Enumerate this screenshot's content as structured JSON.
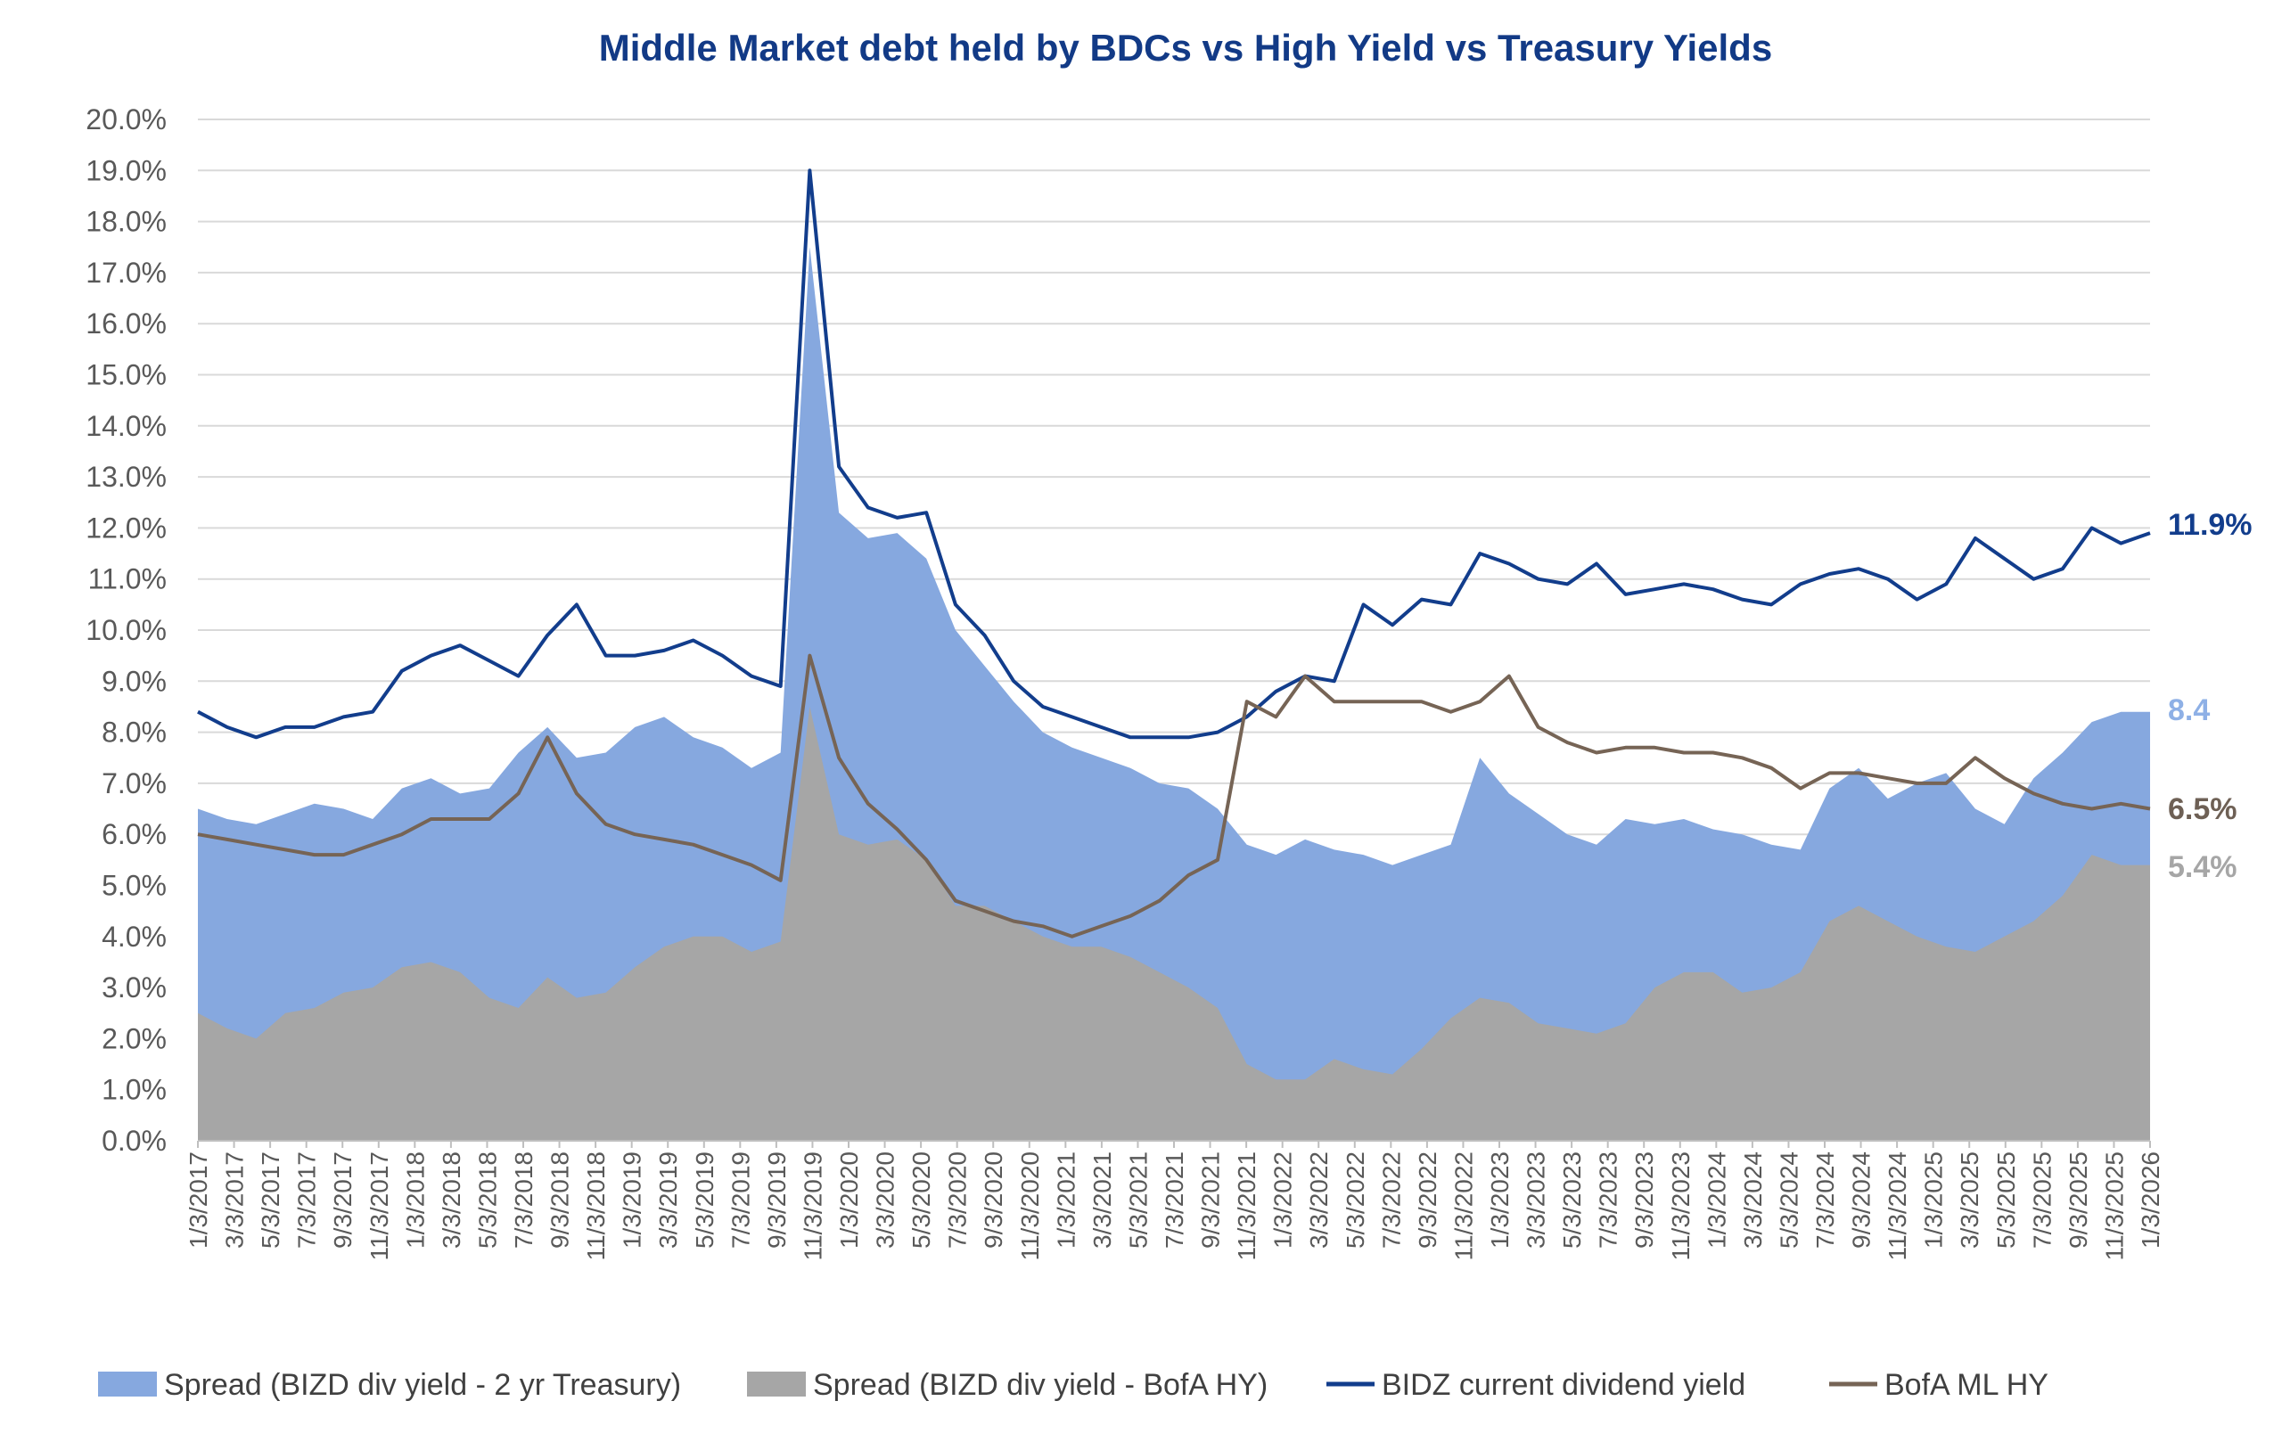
{
  "chart_data": {
    "type": "area",
    "title": "Middle Market debt held by BDCs vs High Yield vs Treasury Yields",
    "xlabel": "",
    "ylabel": "",
    "x_ticks": [
      "1/3/2017",
      "3/3/2017",
      "5/3/2017",
      "7/3/2017",
      "9/3/2017",
      "11/3/2017",
      "1/3/2018",
      "3/3/2018",
      "5/3/2018",
      "7/3/2018",
      "9/3/2018",
      "11/3/2018",
      "1/3/2019",
      "3/3/2019",
      "5/3/2019",
      "7/3/2019",
      "9/3/2019",
      "11/3/2019",
      "1/3/2020",
      "3/3/2020",
      "5/3/2020",
      "7/3/2020",
      "9/3/2020",
      "11/3/2020",
      "1/3/2021",
      "3/3/2021",
      "5/3/2021",
      "7/3/2021",
      "9/3/2021",
      "11/3/2021",
      "1/3/2022",
      "3/3/2022",
      "5/3/2022",
      "7/3/2022",
      "9/3/2022",
      "11/3/2022",
      "1/3/2023",
      "3/3/2023",
      "5/3/2023",
      "7/3/2023",
      "9/3/2023",
      "11/3/2023",
      "1/3/2024",
      "3/3/2024",
      "5/3/2024",
      "7/3/2024",
      "9/3/2024",
      "11/3/2024",
      "1/3/2025",
      "3/3/2025",
      "5/3/2025",
      "7/3/2025",
      "9/3/2025",
      "11/3/2025",
      "1/3/2026"
    ],
    "y_ticks": [
      "0.0%",
      "1.0%",
      "2.0%",
      "3.0%",
      "4.0%",
      "5.0%",
      "6.0%",
      "7.0%",
      "8.0%",
      "9.0%",
      "10.0%",
      "11.0%",
      "12.0%",
      "13.0%",
      "14.0%",
      "15.0%",
      "16.0%",
      "17.0%",
      "18.0%",
      "19.0%",
      "20.0%"
    ],
    "ylim": [
      0,
      20
    ],
    "grid": true,
    "legend_position": "bottom",
    "series": [
      {
        "name": "Spread (BIZD div yield - 2 yr Treasury)",
        "kind": "area",
        "color": "#86a8df",
        "end_label": "8.4",
        "values": [
          6.5,
          6.3,
          6.2,
          6.4,
          6.6,
          6.5,
          6.3,
          6.9,
          7.1,
          6.8,
          6.9,
          7.6,
          8.1,
          7.5,
          7.6,
          8.1,
          8.3,
          7.9,
          7.7,
          7.3,
          7.6,
          17.5,
          12.3,
          11.8,
          11.9,
          11.4,
          10.0,
          9.3,
          8.6,
          8.0,
          7.7,
          7.5,
          7.3,
          7.0,
          6.9,
          6.5,
          5.8,
          5.6,
          5.9,
          5.7,
          5.6,
          5.4,
          5.6,
          5.8,
          7.5,
          6.8,
          6.4,
          6.0,
          5.8,
          6.3,
          6.2,
          6.3,
          6.1,
          6.0,
          5.8,
          5.7,
          6.9,
          7.3,
          6.7,
          7.0,
          7.2,
          6.5,
          6.2,
          7.1,
          7.6,
          8.2,
          8.4,
          8.4
        ]
      },
      {
        "name": "Spread (BIZD div yield - BofA HY)",
        "kind": "area",
        "color": "#a6a6a6",
        "end_label": "5.4%",
        "values": [
          2.5,
          2.2,
          2.0,
          2.5,
          2.6,
          2.9,
          3.0,
          3.4,
          3.5,
          3.3,
          2.8,
          2.6,
          3.2,
          2.8,
          2.9,
          3.4,
          3.8,
          4.0,
          4.0,
          3.7,
          3.9,
          8.5,
          6.0,
          5.8,
          5.9,
          5.5,
          4.6,
          4.6,
          4.3,
          4.0,
          3.8,
          3.8,
          3.6,
          3.3,
          3.0,
          2.6,
          1.5,
          1.2,
          1.2,
          1.6,
          1.4,
          1.3,
          1.8,
          2.4,
          2.8,
          2.7,
          2.3,
          2.2,
          2.1,
          2.3,
          3.0,
          3.3,
          3.3,
          2.9,
          3.0,
          3.3,
          4.3,
          4.6,
          4.3,
          4.0,
          3.8,
          3.7,
          4.0,
          4.3,
          4.8,
          5.6,
          5.4,
          5.4
        ]
      },
      {
        "name": "BIDZ current dividend yield",
        "kind": "line",
        "color": "#123d8c",
        "end_label": "11.9%",
        "values": [
          8.4,
          8.1,
          7.9,
          8.1,
          8.1,
          8.3,
          8.4,
          9.2,
          9.5,
          9.7,
          9.4,
          9.1,
          9.9,
          10.5,
          9.5,
          9.5,
          9.6,
          9.8,
          9.5,
          9.1,
          8.9,
          19.0,
          13.2,
          12.4,
          12.2,
          12.3,
          10.5,
          9.9,
          9.0,
          8.5,
          8.3,
          8.1,
          7.9,
          7.9,
          7.9,
          8.0,
          8.3,
          8.8,
          9.1,
          9.0,
          10.5,
          10.1,
          10.6,
          10.5,
          11.5,
          11.3,
          11.0,
          10.9,
          11.3,
          10.7,
          10.8,
          10.9,
          10.8,
          10.6,
          10.5,
          10.9,
          11.1,
          11.2,
          11.0,
          10.6,
          10.9,
          11.8,
          11.4,
          11.0,
          11.2,
          12.0,
          11.7,
          11.9
        ]
      },
      {
        "name": "BofA ML HY",
        "kind": "line",
        "color": "#766455",
        "end_label": "6.5%",
        "values": [
          6.0,
          5.9,
          5.8,
          5.7,
          5.6,
          5.6,
          5.8,
          6.0,
          6.3,
          6.3,
          6.3,
          6.8,
          7.9,
          6.8,
          6.2,
          6.0,
          5.9,
          5.8,
          5.6,
          5.4,
          5.1,
          9.5,
          7.5,
          6.6,
          6.1,
          5.5,
          4.7,
          4.5,
          4.3,
          4.2,
          4.0,
          4.2,
          4.4,
          4.7,
          5.2,
          5.5,
          8.6,
          8.3,
          9.1,
          8.6,
          8.6,
          8.6,
          8.6,
          8.4,
          8.6,
          9.1,
          8.1,
          7.8,
          7.6,
          7.7,
          7.7,
          7.6,
          7.6,
          7.5,
          7.3,
          6.9,
          7.2,
          7.2,
          7.1,
          7.0,
          7.0,
          7.5,
          7.1,
          6.8,
          6.6,
          6.5,
          6.6,
          6.5
        ]
      }
    ]
  }
}
